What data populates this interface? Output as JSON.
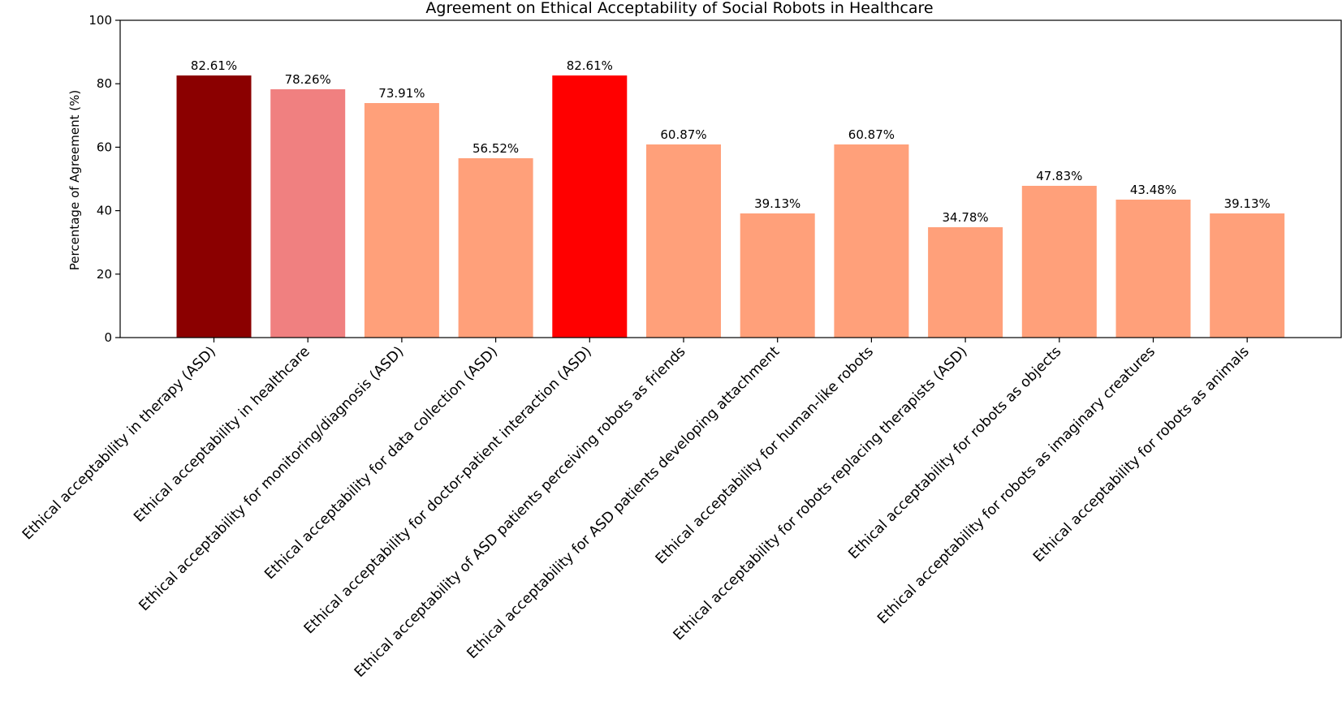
{
  "chart_data": {
    "type": "bar",
    "title": "Agreement on Ethical Acceptability of Social Robots in Healthcare",
    "xlabel": "",
    "ylabel": "Percentage of Agreement (%)",
    "ylim": [
      0,
      100
    ],
    "yticks": [
      0,
      20,
      40,
      60,
      80,
      100
    ],
    "grid": false,
    "categories": [
      "Ethical acceptability in therapy (ASD)",
      "Ethical acceptability in healthcare",
      "Ethical acceptability for monitoring/diagnosis (ASD)",
      "Ethical acceptability for data collection (ASD)",
      "Ethical acceptability for doctor-patient interaction (ASD)",
      "Ethical acceptability of ASD patients perceiving robots as friends",
      "Ethical acceptability for ASD patients developing attachment",
      "Ethical acceptability for human-like robots",
      "Ethical acceptability for robots replacing therapists (ASD)",
      "Ethical acceptability for robots as objects",
      "Ethical acceptability for robots as imaginary creatures",
      "Ethical acceptability for robots as animals"
    ],
    "values": [
      82.61,
      78.26,
      73.91,
      56.52,
      82.61,
      60.87,
      39.13,
      60.87,
      34.78,
      47.83,
      43.48,
      39.13
    ],
    "value_labels": [
      "82.61%",
      "78.26%",
      "73.91%",
      "56.52%",
      "82.61%",
      "60.87%",
      "39.13%",
      "60.87%",
      "34.78%",
      "47.83%",
      "43.48%",
      "39.13%"
    ],
    "colors": [
      "#8b0000",
      "#f08080",
      "#ffa07a",
      "#ffa07a",
      "#ff0000",
      "#ffa07a",
      "#ffa07a",
      "#ffa07a",
      "#ffa07a",
      "#ffa07a",
      "#ffa07a",
      "#ffa07a"
    ]
  }
}
